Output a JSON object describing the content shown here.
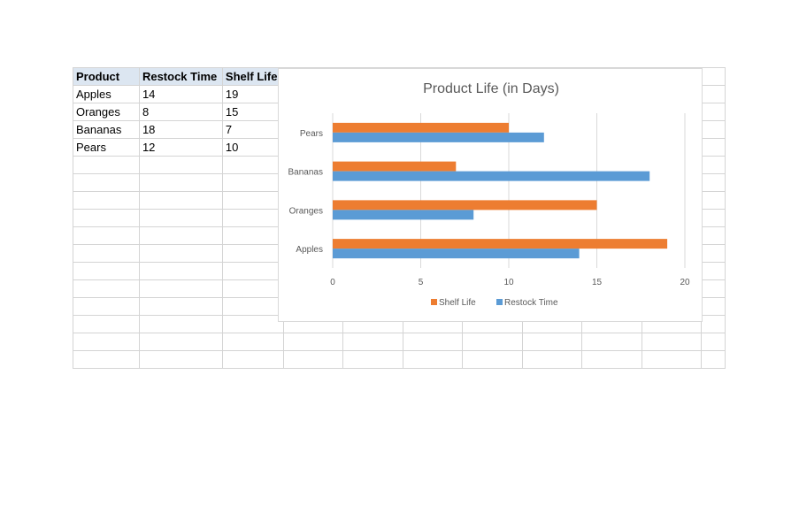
{
  "table": {
    "headers": [
      "Product",
      "Restock Time",
      "Shelf Life"
    ],
    "rows": [
      [
        "Apples",
        "14",
        "19"
      ],
      [
        "Oranges",
        "8",
        "15"
      ],
      [
        "Bananas",
        "18",
        "7"
      ],
      [
        "Pears",
        "12",
        "10"
      ]
    ]
  },
  "chart_data": {
    "type": "bar",
    "orientation": "horizontal",
    "title": "Product Life (in Days)",
    "categories": [
      "Apples",
      "Oranges",
      "Bananas",
      "Pears"
    ],
    "series": [
      {
        "name": "Shelf Life",
        "values": [
          19,
          15,
          7,
          10
        ],
        "color": "#ed7d31"
      },
      {
        "name": "Restock Time",
        "values": [
          14,
          8,
          18,
          12
        ],
        "color": "#5b9bd5"
      }
    ],
    "xlim": [
      0,
      20
    ],
    "xticks": [
      "0",
      "5",
      "10",
      "15",
      "20"
    ],
    "grid": "vertical",
    "legend": "bottom"
  }
}
